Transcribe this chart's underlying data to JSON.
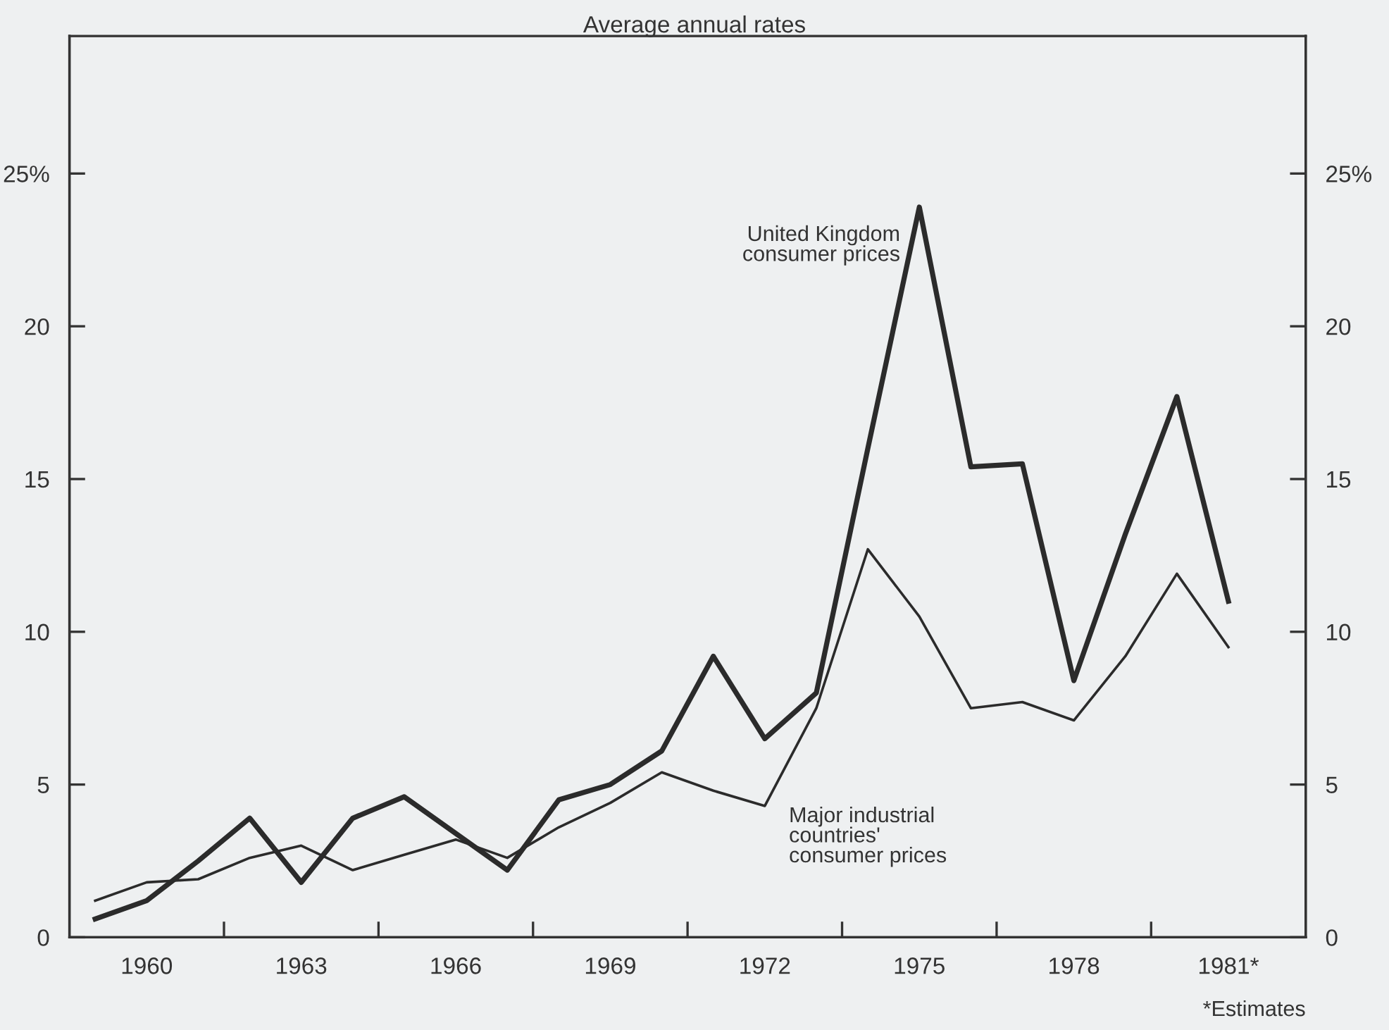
{
  "chart_data": {
    "type": "line",
    "title": "Average annual rates",
    "x": [
      1959,
      1960,
      1961,
      1962,
      1963,
      1964,
      1965,
      1966,
      1967,
      1968,
      1969,
      1970,
      1971,
      1972,
      1973,
      1974,
      1975,
      1976,
      1977,
      1978,
      1979,
      1980,
      1981
    ],
    "series": [
      {
        "color": "#2b2b2b",
        "values": [
          0.6,
          1.2,
          2.5,
          3.9,
          1.8,
          3.9,
          4.6,
          3.4,
          2.2,
          4.5,
          5.0,
          6.1,
          9.2,
          6.5,
          8.0,
          16.0,
          23.9,
          15.4,
          15.5,
          8.4,
          13.2,
          17.7,
          11.0
        ]
      },
      {
        "color": "#2b2b2b",
        "values": [
          1.2,
          1.8,
          1.9,
          2.6,
          3.0,
          2.2,
          2.7,
          3.2,
          2.6,
          3.6,
          4.4,
          5.4,
          4.8,
          4.3,
          7.5,
          12.7,
          10.5,
          7.5,
          7.7,
          7.1,
          9.2,
          11.9,
          9.5
        ]
      }
    ],
    "xlim": [
      1958.5,
      1982.5
    ],
    "xticks": [
      {
        "value": 1960,
        "label": "1960"
      },
      {
        "value": 1961.5,
        "label": null
      },
      {
        "value": 1963,
        "label": "1963"
      },
      {
        "value": 1964.5,
        "label": null
      },
      {
        "value": 1966,
        "label": "1966"
      },
      {
        "value": 1967.5,
        "label": null
      },
      {
        "value": 1969,
        "label": "1969"
      },
      {
        "value": 1970.5,
        "label": null
      },
      {
        "value": 1972,
        "label": "1972"
      },
      {
        "value": 1973.5,
        "label": null
      },
      {
        "value": 1975,
        "label": "1975"
      },
      {
        "value": 1976.5,
        "label": null
      },
      {
        "value": 1978,
        "label": "1978"
      },
      {
        "value": 1979.5,
        "label": null
      },
      {
        "value": 1981,
        "label": "1981*"
      }
    ],
    "ylim": [
      0,
      29.5
    ],
    "yticks": [
      0,
      5,
      10,
      15,
      20,
      {
        "value": 25,
        "label": "25%"
      }
    ],
    "y2lim": [
      0,
      29.5
    ],
    "y2ticks": [
      0,
      5,
      10,
      15,
      20,
      {
        "value": 25,
        "label": "25%"
      }
    ],
    "annotations": [
      "United Kingdom\nconsumer prices",
      "Major industrial\ncountries'\nconsumer prices",
      "*Estimates"
    ]
  }
}
